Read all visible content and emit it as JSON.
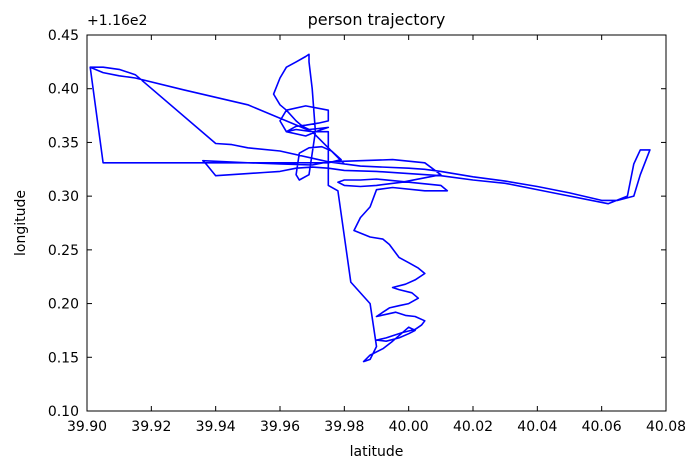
{
  "chart_data": {
    "type": "line",
    "title": "person trajectory",
    "xlabel": "latitude",
    "ylabel": "longitude",
    "y_offset_label": "+1.16e2",
    "xlim": [
      39.9,
      40.08
    ],
    "ylim": [
      0.1,
      0.45
    ],
    "x_ticks": [
      "39.90",
      "39.92",
      "39.94",
      "39.96",
      "39.98",
      "40.00",
      "40.02",
      "40.04",
      "40.06",
      "40.08"
    ],
    "y_ticks": [
      "0.10",
      "0.15",
      "0.20",
      "0.25",
      "0.30",
      "0.35",
      "0.40",
      "0.45"
    ],
    "grid": false,
    "line_color": "#0000ff",
    "series": [
      {
        "x": [
          39.901,
          39.905,
          39.91,
          39.915,
          39.94,
          39.945,
          39.95,
          39.96,
          39.975,
          39.985,
          40.0,
          40.005,
          40.01,
          40.02,
          40.03,
          40.04,
          40.05,
          40.06,
          40.065,
          40.07,
          40.072,
          40.075,
          40.072,
          40.07,
          40.068,
          40.062,
          40.045,
          40.03,
          40.02,
          40.01,
          40.0,
          39.99,
          39.98,
          39.975,
          39.97,
          39.965,
          39.96,
          39.955,
          39.95,
          39.94,
          39.937,
          39.936,
          39.95,
          39.96,
          39.97,
          39.975,
          39.985,
          39.995,
          40.005,
          40.01,
          39.998,
          39.99,
          39.985,
          39.98,
          39.978,
          39.98,
          39.985,
          39.99,
          40.0,
          40.01,
          40.012,
          40.005,
          39.995,
          39.99,
          39.988,
          39.985,
          39.983,
          39.988,
          39.992,
          39.994,
          39.997,
          40.0,
          40.003,
          40.005,
          40.002,
          39.999,
          39.995,
          39.997,
          40.001,
          40.003,
          40.0,
          39.997,
          39.994,
          39.992,
          39.99,
          39.993,
          39.996,
          39.999,
          40.002,
          40.005,
          40.004,
          40.002,
          39.998,
          39.995,
          39.993,
          39.99,
          39.993,
          39.997,
          40.0,
          40.002,
          40.0,
          39.995,
          39.992,
          39.988,
          39.986,
          39.986,
          39.988,
          39.99,
          39.988,
          39.982,
          39.978,
          39.975,
          39.975,
          39.97,
          39.965,
          39.962,
          39.965,
          39.968,
          39.972,
          39.975,
          39.975,
          39.968,
          39.962,
          39.96,
          39.962,
          39.968,
          39.972,
          39.975,
          39.972,
          39.969,
          39.967,
          39.965,
          39.962,
          39.96,
          39.958,
          39.96,
          39.962,
          39.965,
          39.968,
          39.969,
          39.969,
          39.97,
          39.971,
          39.969,
          39.966,
          39.965,
          39.966,
          39.969,
          39.973,
          39.976,
          39.979,
          39.975,
          39.968,
          39.96,
          39.95,
          39.94,
          39.93,
          39.92,
          39.912,
          39.905,
          39.901,
          39.905,
          39.91,
          39.915,
          39.93,
          39.95,
          39.97,
          39.98
        ],
        "y": [
          0.42,
          0.42,
          0.418,
          0.413,
          0.349,
          0.348,
          0.345,
          0.342,
          0.332,
          0.328,
          0.326,
          0.325,
          0.323,
          0.318,
          0.314,
          0.309,
          0.303,
          0.296,
          0.296,
          0.3,
          0.32,
          0.343,
          0.343,
          0.33,
          0.3,
          0.293,
          0.303,
          0.312,
          0.315,
          0.319,
          0.321,
          0.323,
          0.324,
          0.326,
          0.327,
          0.326,
          0.323,
          0.322,
          0.321,
          0.319,
          0.33,
          0.333,
          0.331,
          0.33,
          0.329,
          0.332,
          0.333,
          0.334,
          0.331,
          0.32,
          0.313,
          0.31,
          0.309,
          0.31,
          0.313,
          0.315,
          0.315,
          0.316,
          0.313,
          0.31,
          0.305,
          0.305,
          0.308,
          0.306,
          0.29,
          0.28,
          0.268,
          0.262,
          0.26,
          0.255,
          0.243,
          0.238,
          0.233,
          0.228,
          0.222,
          0.218,
          0.215,
          0.213,
          0.21,
          0.205,
          0.2,
          0.198,
          0.196,
          0.192,
          0.188,
          0.19,
          0.192,
          0.189,
          0.188,
          0.184,
          0.18,
          0.176,
          0.173,
          0.17,
          0.168,
          0.166,
          0.165,
          0.168,
          0.172,
          0.175,
          0.178,
          0.165,
          0.158,
          0.152,
          0.146,
          0.146,
          0.148,
          0.16,
          0.2,
          0.22,
          0.305,
          0.31,
          0.36,
          0.36,
          0.362,
          0.36,
          0.365,
          0.366,
          0.368,
          0.37,
          0.38,
          0.384,
          0.38,
          0.37,
          0.36,
          0.356,
          0.361,
          0.364,
          0.363,
          0.362,
          0.365,
          0.37,
          0.38,
          0.385,
          0.395,
          0.41,
          0.42,
          0.425,
          0.43,
          0.432,
          0.425,
          0.4,
          0.36,
          0.32,
          0.315,
          0.32,
          0.34,
          0.345,
          0.346,
          0.342,
          0.334,
          0.331,
          0.331,
          0.331,
          0.331,
          0.331,
          0.331,
          0.331,
          0.331,
          0.331,
          0.42,
          0.415,
          0.412,
          0.41,
          0.399,
          0.385,
          0.36,
          0.33
        ]
      }
    ]
  }
}
